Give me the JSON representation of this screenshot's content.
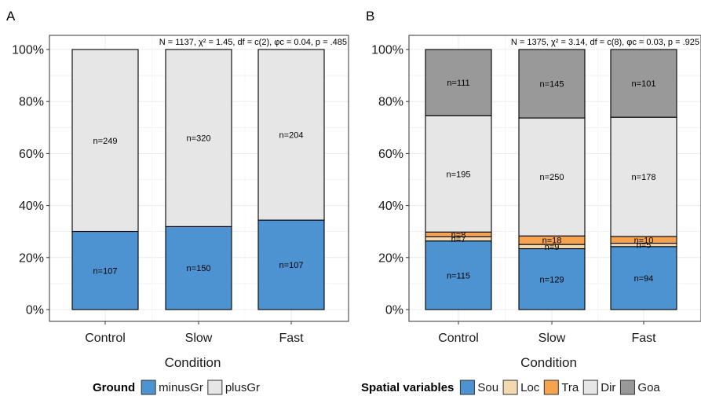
{
  "chart_data": [
    {
      "panel": "A",
      "type": "bar",
      "stacked": "percent",
      "categories": [
        "Control",
        "Slow",
        "Fast"
      ],
      "xlabel": "Condition",
      "ylabel": "",
      "yticks": [
        "0%",
        "20%",
        "40%",
        "60%",
        "80%",
        "100%"
      ],
      "ylim": [
        0,
        1
      ],
      "grid": true,
      "stats_label": "N = 1137,  χ² = 1.45,  df = c(2),  φc = 0.04,  p = .485",
      "legend": {
        "title": "Ground",
        "position": "bottom"
      },
      "series": [
        {
          "name": "minusGr",
          "color": "#4d93d1",
          "values": [
            107,
            150,
            107
          ]
        },
        {
          "name": "plusGr",
          "color": "#e6e6e6",
          "values": [
            249,
            320,
            204
          ]
        }
      ],
      "labels": [
        [
          "n=107",
          "n=150",
          "n=107"
        ],
        [
          "n=249",
          "n=320",
          "n=204"
        ]
      ]
    },
    {
      "panel": "B",
      "type": "bar",
      "stacked": "percent",
      "categories": [
        "Control",
        "Slow",
        "Fast"
      ],
      "xlabel": "Condition",
      "ylabel": "",
      "yticks": [
        "0%",
        "20%",
        "40%",
        "60%",
        "80%",
        "100%"
      ],
      "ylim": [
        0,
        1
      ],
      "grid": true,
      "stats_label": "N = 1375,  χ² = 3.14,  df = c(8),  φc = 0.03,  p = .925",
      "legend": {
        "title": "Spatial variables",
        "position": "bottom"
      },
      "series": [
        {
          "name": "Sou",
          "color": "#4d93d1",
          "values": [
            115,
            129,
            94
          ]
        },
        {
          "name": "Loc",
          "color": "#f2d9b0",
          "values": [
            7,
            9,
            5
          ]
        },
        {
          "name": "Tra",
          "color": "#f5a34e",
          "values": [
            8,
            18,
            10
          ]
        },
        {
          "name": "Dir",
          "color": "#e6e6e6",
          "values": [
            195,
            250,
            178
          ]
        },
        {
          "name": "Goa",
          "color": "#999999",
          "values": [
            111,
            145,
            101
          ]
        }
      ],
      "labels": [
        [
          "n=115",
          "n=129",
          "n=94"
        ],
        [
          "n=7",
          "n=9",
          "n=5"
        ],
        [
          "n=8",
          "n=18",
          "n=10"
        ],
        [
          "n=195",
          "n=250",
          "n=178"
        ],
        [
          "n=111",
          "n=145",
          "n=101"
        ]
      ]
    }
  ]
}
